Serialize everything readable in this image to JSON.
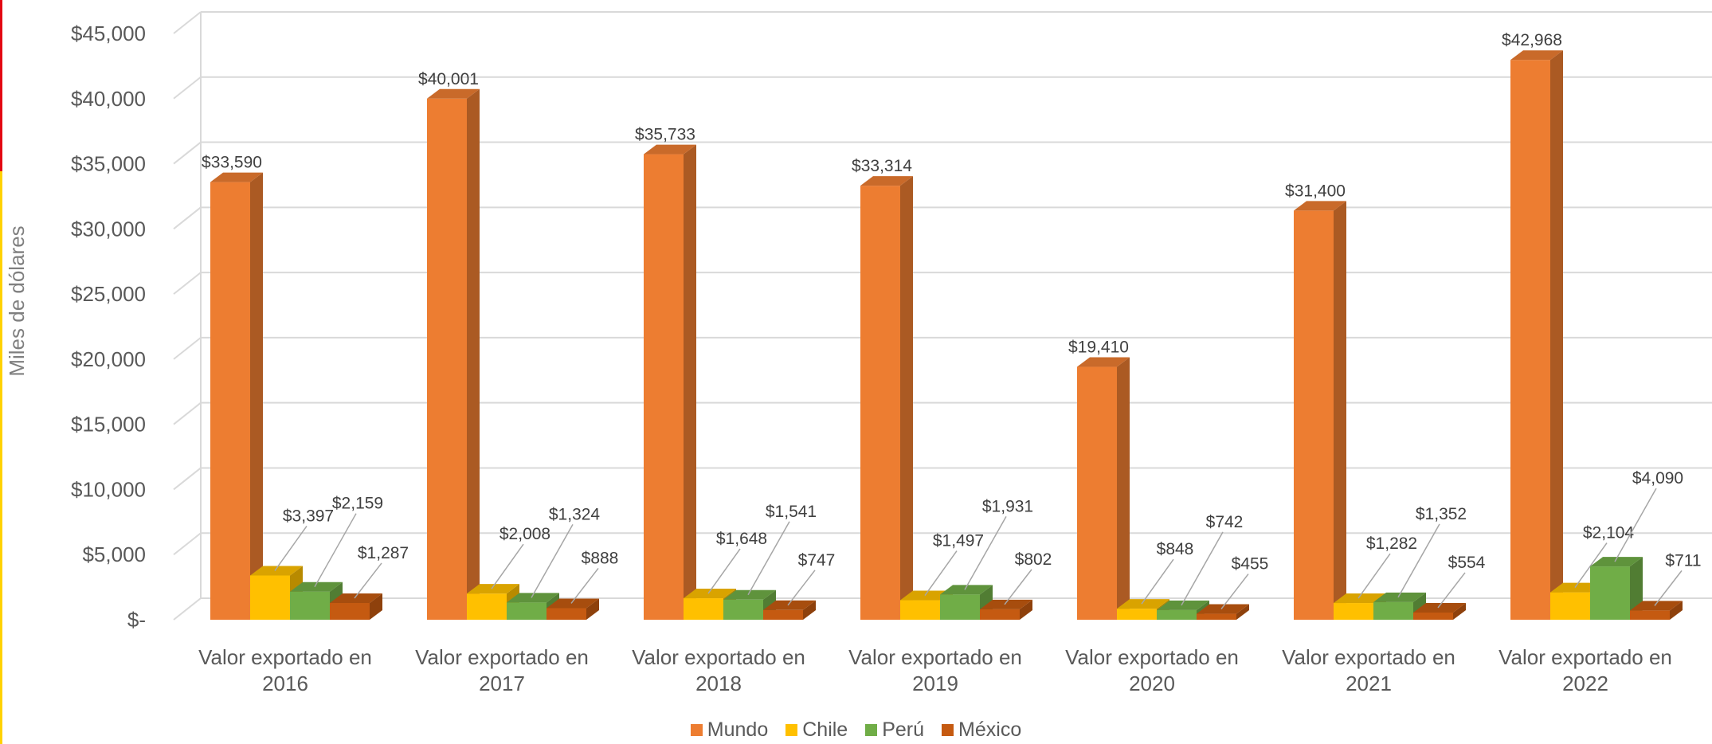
{
  "chart_data": {
    "type": "bar",
    "title": "",
    "xlabel": "",
    "ylabel": "Miles de dólares",
    "ylim": [
      0,
      45000
    ],
    "y_ticks": [
      0,
      5000,
      10000,
      15000,
      20000,
      25000,
      30000,
      35000,
      40000,
      45000
    ],
    "y_tick_labels": [
      "$-",
      "$5,000",
      "$10,000",
      "$15,000",
      "$20,000",
      "$25,000",
      "$30,000",
      "$35,000",
      "$40,000",
      "$45,000"
    ],
    "categories": [
      [
        "Valor exportado en",
        "2016"
      ],
      [
        "Valor exportado en",
        "2017"
      ],
      [
        "Valor exportado en",
        "2018"
      ],
      [
        "Valor exportado en",
        "2019"
      ],
      [
        "Valor exportado en",
        "2020"
      ],
      [
        "Valor exportado en",
        "2021"
      ],
      [
        "Valor exportado en",
        "2022"
      ]
    ],
    "series": [
      {
        "name": "Mundo",
        "color": "#ED7D31",
        "values": [
          33590,
          40001,
          35733,
          33314,
          19410,
          31400,
          42968
        ],
        "labels": [
          "$33,590",
          "$40,001",
          "$35,733",
          "$33,314",
          "$19,410",
          "$31,400",
          "$42,968"
        ]
      },
      {
        "name": "Chile",
        "color": "#FFC000",
        "values": [
          3397,
          2008,
          1648,
          1497,
          848,
          1282,
          2104
        ],
        "labels": [
          "$3,397",
          "$2,008",
          "$1,648",
          "$1,497",
          "$848",
          "$1,282",
          "$2,104"
        ]
      },
      {
        "name": "Perú",
        "color": "#70AD47",
        "values": [
          2159,
          1324,
          1541,
          1931,
          742,
          1352,
          4090
        ],
        "labels": [
          "$2,159",
          "$1,324",
          "$1,541",
          "$1,931",
          "$742",
          "$1,352",
          "$4,090"
        ]
      },
      {
        "name": "México",
        "color": "#C55A11",
        "values": [
          1287,
          888,
          747,
          802,
          455,
          554,
          711
        ],
        "labels": [
          "$1,287",
          "$888",
          "$747",
          "$802",
          "$455",
          "$554",
          "$711"
        ]
      }
    ],
    "grid": true,
    "legend": "bottom",
    "style": "3d-clustered-column"
  },
  "legend_items": [
    "Mundo",
    "Chile",
    "Perú",
    "México"
  ]
}
